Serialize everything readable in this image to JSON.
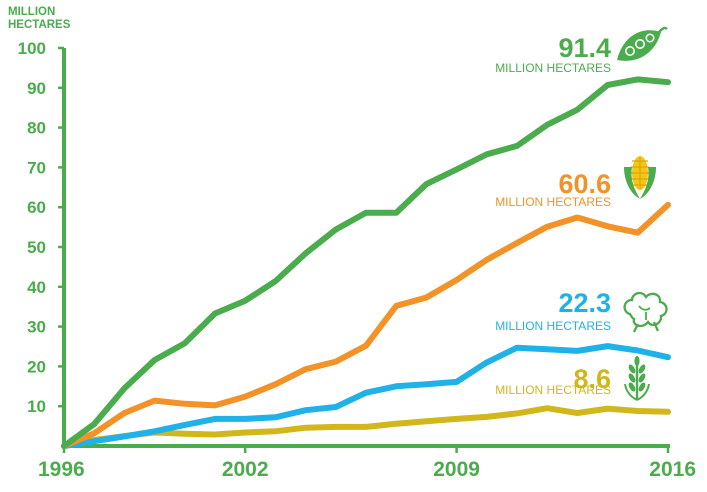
{
  "chart_data": {
    "type": "line",
    "y_unit_label": [
      "MILLION",
      "HECTARES"
    ],
    "x": [
      1996,
      1997,
      1998,
      1999,
      2000,
      2001,
      2002,
      2003,
      2004,
      2005,
      2006,
      2007,
      2008,
      2009,
      2010,
      2011,
      2012,
      2013,
      2014,
      2015,
      2016
    ],
    "x_tick_labels": [
      "1996",
      "2002",
      "2009",
      "2016"
    ],
    "x_tick_values": [
      1996,
      2002,
      2009,
      2016
    ],
    "y_ticks": [
      10,
      20,
      30,
      40,
      50,
      60,
      70,
      80,
      90,
      100
    ],
    "ylim": [
      0,
      100
    ],
    "grid": false,
    "series": [
      {
        "color": "#4aac4c",
        "value_label": "91.4",
        "unit_label": "MILLION HECTARES",
        "icon": "soybean-pod-icon",
        "values": [
          0,
          5.5,
          14.5,
          21.6,
          25.8,
          33.3,
          36.5,
          41.4,
          48.4,
          54.4,
          58.6,
          58.6,
          65.8,
          69.5,
          73.3,
          75.4,
          80.7,
          84.5,
          90.7,
          92.1,
          91.4
        ]
      },
      {
        "color": "#f39226",
        "value_label": "60.6",
        "unit_label": "MILLION HECTARES",
        "icon": "corn-cob-icon",
        "values": [
          0,
          3.2,
          8.3,
          11.4,
          10.6,
          10.2,
          12.4,
          15.5,
          19.3,
          21.2,
          25.2,
          35.2,
          37.3,
          41.7,
          46.8,
          51.0,
          55.1,
          57.4,
          55.2,
          53.6,
          60.6
        ]
      },
      {
        "color": "#1fb2e8",
        "value_label": "22.3",
        "unit_label": "MILLION HECTARES",
        "icon": "cotton-boll-icon",
        "values": [
          0,
          1.2,
          2.4,
          3.7,
          5.3,
          6.8,
          6.8,
          7.2,
          9.0,
          9.8,
          13.4,
          15.0,
          15.5,
          16.1,
          21.0,
          24.7,
          24.3,
          23.9,
          25.1,
          24.0,
          22.3
        ]
      },
      {
        "color": "#d1b71a",
        "value_label": "8.6",
        "unit_label": "MILLION HECTARES",
        "icon": "wheat-plant-icon",
        "values": [
          0,
          1.5,
          2.5,
          3.4,
          3.1,
          2.9,
          3.4,
          3.7,
          4.6,
          4.8,
          4.8,
          5.6,
          6.2,
          6.8,
          7.3,
          8.2,
          9.5,
          8.3,
          9.4,
          8.8,
          8.6
        ]
      }
    ]
  }
}
